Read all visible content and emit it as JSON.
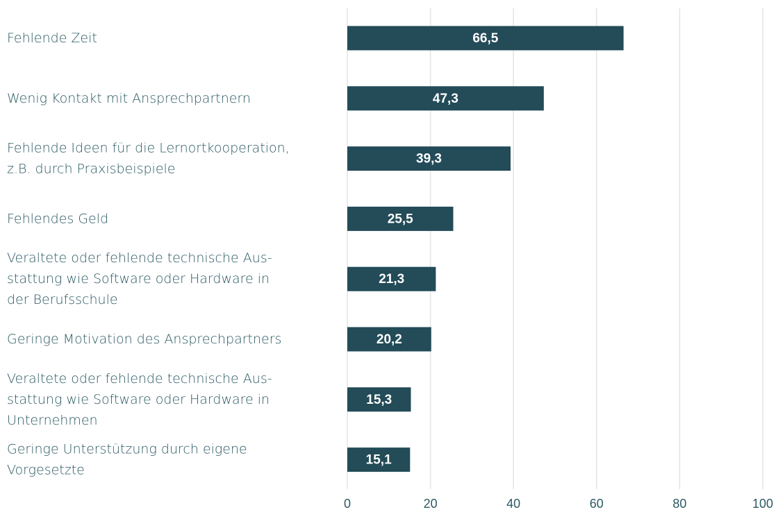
{
  "chart_data": {
    "type": "bar",
    "orientation": "horizontal",
    "categories": [
      "Fehlende Zeit",
      "Wenig Kontakt mit Ansprechpartnern",
      "Fehlende Ideen für die Lernortkooperation,\nz.B. durch Praxisbeispiele",
      "Fehlendes Geld",
      "Veraltete oder fehlende technische Aus-\nstattung wie Software oder Hardware in\nder Berufsschule",
      "Geringe Motivation des Ansprechpartners",
      "Veraltete oder fehlende technische Aus-\nstattung wie Software oder Hardware in\nUnternehmen",
      "Geringe Unterstützung durch eigene\nVorgesetzte"
    ],
    "values": [
      66.5,
      47.3,
      39.3,
      25.5,
      21.3,
      20.2,
      15.3,
      15.1
    ],
    "value_labels": [
      "66,5",
      "47,3",
      "39,3",
      "25,5",
      "21,3",
      "20,2",
      "15,3",
      "15,1"
    ],
    "color": "#234b58",
    "xlim": [
      0,
      100
    ],
    "xticks": [
      0,
      20,
      40,
      60,
      80,
      100
    ],
    "grid": true
  }
}
